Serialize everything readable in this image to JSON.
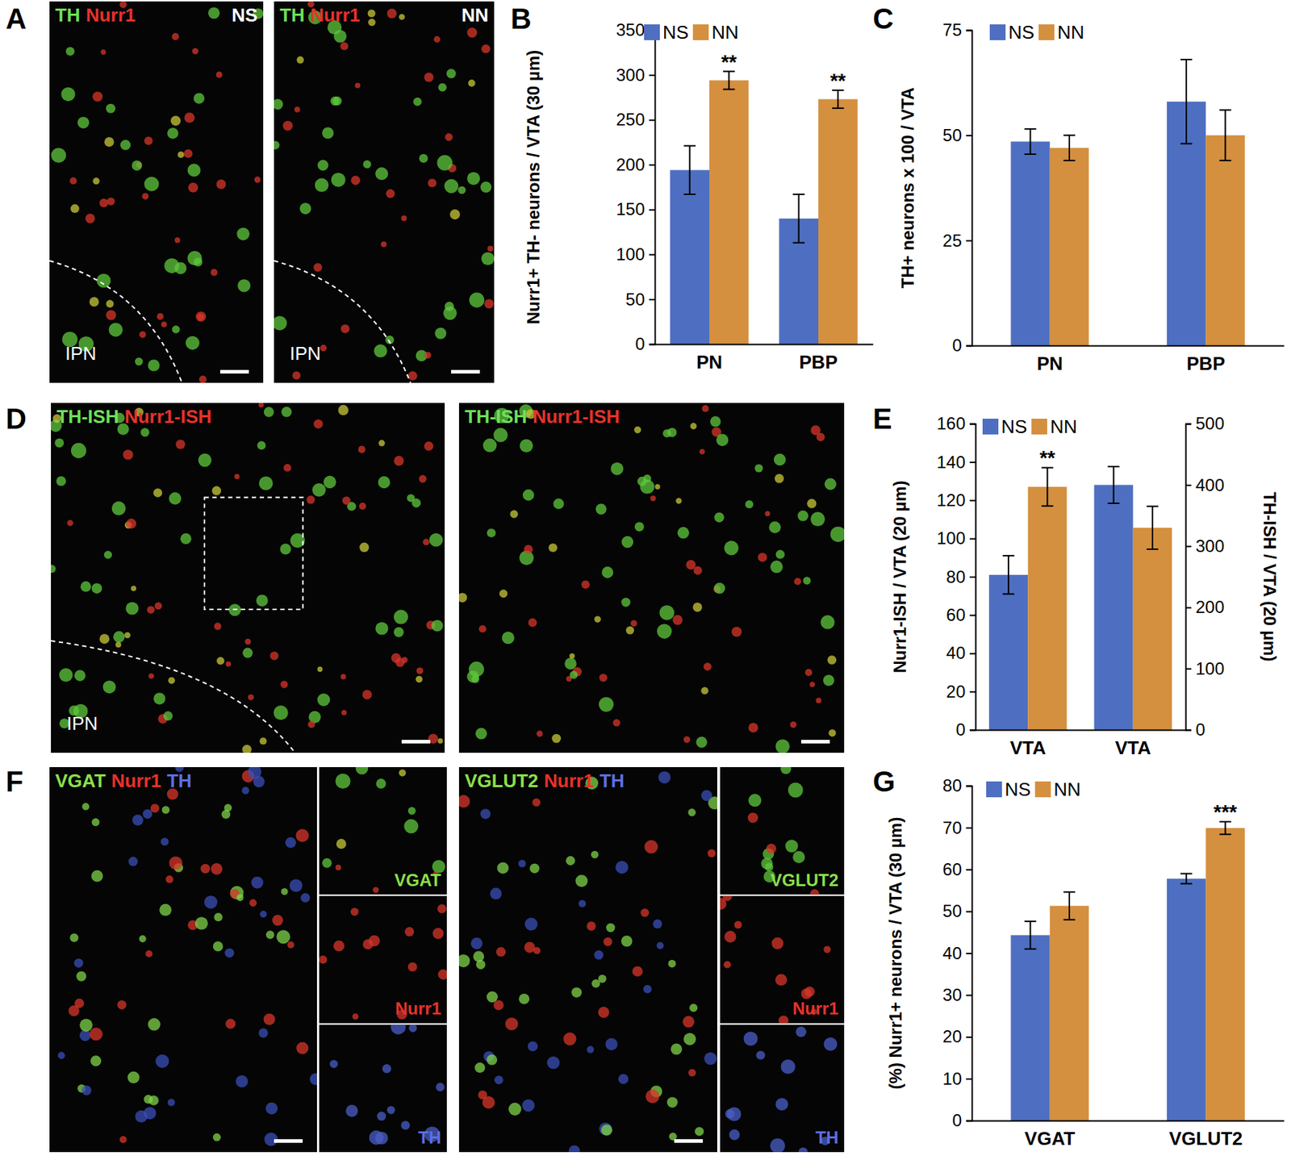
{
  "chart_data": [
    {
      "type": "bar",
      "label": "B",
      "ylabel": "Nurr1+ TH- neurons / VTA (30 µm)",
      "categories": [
        "PN",
        "PBP"
      ],
      "series": [
        {
          "name": "NS",
          "color": "#4e6fc1",
          "values": [
            194,
            140
          ],
          "errors": [
            27,
            27
          ]
        },
        {
          "name": "NN",
          "color": "#d4903f",
          "values": [
            294,
            273
          ],
          "errors": [
            10,
            10
          ]
        }
      ],
      "ylim": [
        0,
        350
      ],
      "yticks": [
        0,
        50,
        100,
        150,
        200,
        250,
        300,
        350
      ],
      "legend": "upper left",
      "annotations": [
        {
          "text": "**",
          "series": 1,
          "category": 0
        },
        {
          "text": "**",
          "series": 1,
          "category": 1
        }
      ]
    },
    {
      "type": "bar",
      "label": "C",
      "ylabel": "TH+ neurons x 100 / VTA",
      "categories": [
        "PN",
        "PBP"
      ],
      "series": [
        {
          "name": "NS",
          "color": "#4e6fc1",
          "values": [
            48.5,
            58
          ],
          "errors": [
            3,
            10
          ]
        },
        {
          "name": "NN",
          "color": "#d4903f",
          "values": [
            47,
            50
          ],
          "errors": [
            3,
            6
          ]
        }
      ],
      "ylim": [
        0,
        75
      ],
      "yticks": [
        0,
        25,
        50,
        75
      ],
      "legend": "upper left"
    },
    {
      "type": "bar",
      "label": "E",
      "ylabel": "Nurr1-ISH / VTA (20 µm)",
      "y2label": "TH-ISH / VTA (20 µm)",
      "categories": [
        "VTA",
        "VTA"
      ],
      "series": [
        {
          "name": "NS",
          "color": "#4e6fc1",
          "values": [
            81,
            null
          ],
          "errors": [
            10,
            null
          ]
        },
        {
          "name": "NN",
          "color": "#d4903f",
          "values": [
            127,
            null
          ],
          "errors": [
            10,
            null
          ]
        },
        {
          "name": "NS",
          "color": "#4e6fc1",
          "axis": "y2",
          "values": [
            null,
            400
          ],
          "errors": [
            null,
            30
          ]
        },
        {
          "name": "NN",
          "color": "#d4903f",
          "axis": "y2",
          "values": [
            null,
            330
          ],
          "errors": [
            null,
            35
          ]
        }
      ],
      "ylim": [
        0,
        160
      ],
      "yticks": [
        0,
        20,
        40,
        60,
        80,
        100,
        120,
        140,
        160
      ],
      "y2lim": [
        0,
        500
      ],
      "y2ticks": [
        0,
        100,
        200,
        300,
        400,
        500
      ],
      "legend": "upper left",
      "annotations": [
        {
          "text": "**",
          "series": 1,
          "category": 0
        }
      ]
    },
    {
      "type": "bar",
      "label": "G",
      "ylabel": "(%) Nurr1+ neurons / VTA (30 µm)",
      "categories": [
        "VGAT",
        "VGLUT2"
      ],
      "series": [
        {
          "name": "NS",
          "color": "#4e6fc1",
          "values": [
            44.3,
            57.8
          ],
          "errors": [
            3.3,
            1.2
          ]
        },
        {
          "name": "NN",
          "color": "#d4903f",
          "values": [
            51.3,
            69.9
          ],
          "errors": [
            3.3,
            1.5
          ]
        }
      ],
      "ylim": [
        0,
        80
      ],
      "yticks": [
        0,
        10,
        20,
        30,
        40,
        50,
        60,
        70,
        80
      ],
      "legend": "upper left",
      "annotations": [
        {
          "text": "***",
          "series": 1,
          "category": 1
        }
      ]
    }
  ],
  "image_panels": [
    {
      "label": "A",
      "images": [
        {
          "header": [
            {
              "text": "TH",
              "color": "#6ee05a"
            },
            {
              "text": "Nurr1",
              "color": "#e8312a"
            }
          ],
          "corner": "NS",
          "footer": "IPN"
        },
        {
          "header": [
            {
              "text": "TH",
              "color": "#6ee05a"
            },
            {
              "text": "Nurr1",
              "color": "#e8312a"
            }
          ],
          "corner": "NN",
          "footer": "IPN"
        }
      ]
    },
    {
      "label": "D",
      "images": [
        {
          "header": [
            {
              "text": "TH-ISH",
              "color": "#6ee05a"
            },
            {
              "text": "Nurr1-ISH",
              "color": "#e8312a"
            }
          ],
          "footer": "IPN"
        },
        {
          "header": [
            {
              "text": "TH-ISH",
              "color": "#6ee05a"
            },
            {
              "text": "Nurr1-ISH",
              "color": "#e8312a"
            }
          ]
        }
      ]
    },
    {
      "label": "F",
      "images": [
        {
          "header": [
            {
              "text": "VGAT",
              "color": "#8be04a"
            },
            {
              "text": "Nurr1",
              "color": "#e8312a"
            },
            {
              "text": "TH",
              "color": "#5b6fe0"
            }
          ],
          "insets": [
            {
              "text": "VGAT",
              "color": "#8be04a"
            },
            {
              "text": "Nurr1",
              "color": "#e8312a"
            },
            {
              "text": "TH",
              "color": "#5b6fe0"
            }
          ]
        },
        {
          "header": [
            {
              "text": "VGLUT2",
              "color": "#8be04a"
            },
            {
              "text": "Nurr1",
              "color": "#e8312a"
            },
            {
              "text": "TH",
              "color": "#5b6fe0"
            }
          ],
          "insets": [
            {
              "text": "VGLUT2",
              "color": "#8be04a"
            },
            {
              "text": "Nurr1",
              "color": "#e8312a"
            },
            {
              "text": "TH",
              "color": "#5b6fe0"
            }
          ]
        }
      ]
    }
  ]
}
